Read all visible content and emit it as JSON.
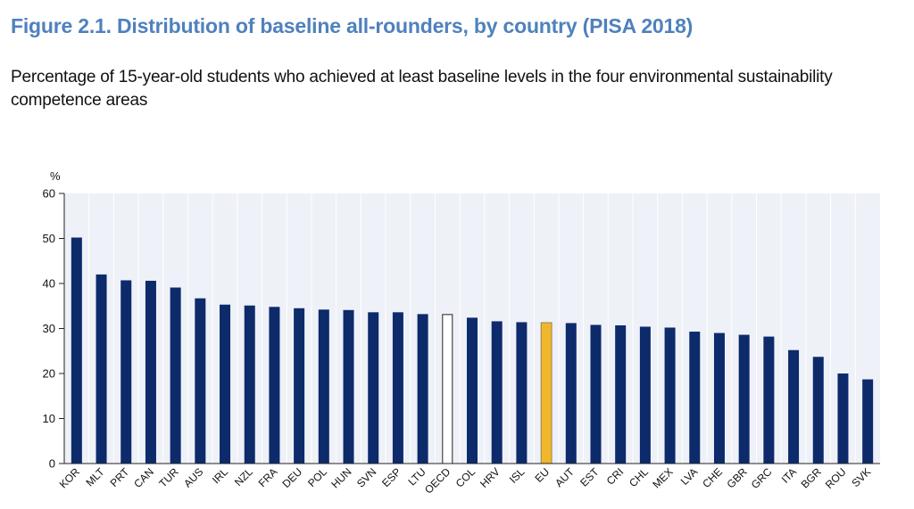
{
  "figure": {
    "title": "Figure 2.1. Distribution of baseline all-rounders, by country (PISA 2018)",
    "subtitle": "Percentage of 15-year-old students who achieved at least baseline levels in the four environmental sustainability competence areas"
  },
  "colors": {
    "default_bar": "#0d2a6b",
    "oecd_bar_fill": "#ffffff",
    "oecd_bar_stroke": "#222222",
    "eu_bar": "#f0b72c",
    "plot_background": "#eef1f7",
    "gridline": "#ffffff"
  },
  "chart_data": {
    "type": "bar",
    "title": "",
    "xlabel": "",
    "ylabel": "%",
    "ylim": [
      0,
      60
    ],
    "yticks": [
      0,
      10,
      20,
      30,
      40,
      50,
      60
    ],
    "grid": "vertical",
    "categories": [
      "KOR",
      "MLT",
      "PRT",
      "CAN",
      "TUR",
      "AUS",
      "IRL",
      "NZL",
      "FRA",
      "DEU",
      "POL",
      "HUN",
      "SVN",
      "ESP",
      "LTU",
      "OECD",
      "COL",
      "HRV",
      "ISL",
      "EU",
      "AUT",
      "EST",
      "CRI",
      "CHL",
      "MEX",
      "LVA",
      "CHE",
      "GBR",
      "GRC",
      "ITA",
      "BGR",
      "ROU",
      "SVK"
    ],
    "values": [
      50.2,
      42.0,
      40.7,
      40.6,
      39.1,
      36.7,
      35.3,
      35.1,
      34.8,
      34.5,
      34.2,
      34.1,
      33.6,
      33.6,
      33.2,
      33.1,
      32.4,
      31.6,
      31.4,
      31.3,
      31.2,
      30.8,
      30.7,
      30.4,
      30.2,
      29.3,
      29.0,
      28.6,
      28.2,
      25.2,
      23.7,
      20.0,
      18.7
    ],
    "highlight": {
      "OECD": "outline",
      "EU": "gold"
    }
  }
}
